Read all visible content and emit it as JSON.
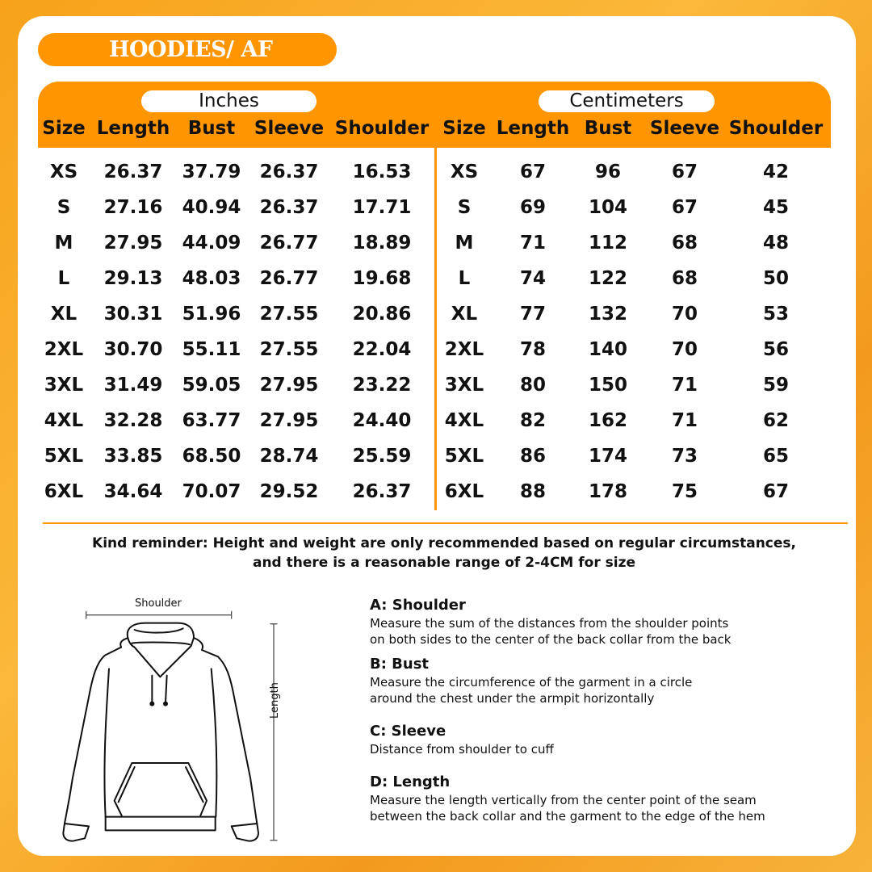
{
  "title": "HOODIES/ AF",
  "accent_color": "#ff9500",
  "units": {
    "inches": "Inches",
    "centimeters": "Centimeters"
  },
  "headers": [
    "Size",
    "Length",
    "Bust",
    "Sleeve",
    "Shoulder"
  ],
  "inches_rows": [
    [
      "XS",
      "26.37",
      "37.79",
      "26.37",
      "16.53"
    ],
    [
      "S",
      "27.16",
      "40.94",
      "26.37",
      "17.71"
    ],
    [
      "M",
      "27.95",
      "44.09",
      "26.77",
      "18.89"
    ],
    [
      "L",
      "29.13",
      "48.03",
      "26.77",
      "19.68"
    ],
    [
      "XL",
      "30.31",
      "51.96",
      "27.55",
      "20.86"
    ],
    [
      "2XL",
      "30.70",
      "55.11",
      "27.55",
      "22.04"
    ],
    [
      "3XL",
      "31.49",
      "59.05",
      "27.95",
      "23.22"
    ],
    [
      "4XL",
      "32.28",
      "63.77",
      "27.95",
      "24.40"
    ],
    [
      "5XL",
      "33.85",
      "68.50",
      "28.74",
      "25.59"
    ],
    [
      "6XL",
      "34.64",
      "70.07",
      "29.52",
      "26.37"
    ]
  ],
  "cm_rows": [
    [
      "XS",
      "67",
      "96",
      "67",
      "42"
    ],
    [
      "S",
      "69",
      "104",
      "67",
      "45"
    ],
    [
      "M",
      "71",
      "112",
      "68",
      "48"
    ],
    [
      "L",
      "74",
      "122",
      "68",
      "50"
    ],
    [
      "XL",
      "77",
      "132",
      "70",
      "53"
    ],
    [
      "2XL",
      "78",
      "140",
      "70",
      "56"
    ],
    [
      "3XL",
      "80",
      "150",
      "71",
      "59"
    ],
    [
      "4XL",
      "82",
      "162",
      "71",
      "62"
    ],
    [
      "5XL",
      "86",
      "174",
      "73",
      "65"
    ],
    [
      "6XL",
      "88",
      "178",
      "75",
      "67"
    ]
  ],
  "reminder": [
    "Kind reminder: Height and weight are only recommended based on regular circumstances,",
    "and there is a reasonable range of 2-4CM for size"
  ],
  "diagram": {
    "shoulder_label": "Shoulder",
    "length_label": "Length"
  },
  "measurements": [
    {
      "title": "A: Shoulder",
      "lines": [
        "Measure the sum of the distances from the shoulder points",
        "on both sides to the center of the back collar from the back"
      ]
    },
    {
      "title": "B: Bust",
      "lines": [
        "Measure the circumference of the garment in a circle",
        "around the chest under the armpit horizontally"
      ]
    },
    {
      "title": "C: Sleeve",
      "lines": [
        "Distance from shoulder to cuff"
      ]
    },
    {
      "title": "D: Length",
      "lines": [
        "Measure the length vertically from the center point of the seam",
        "between the back collar and the garment to the edge of the hem"
      ]
    }
  ]
}
